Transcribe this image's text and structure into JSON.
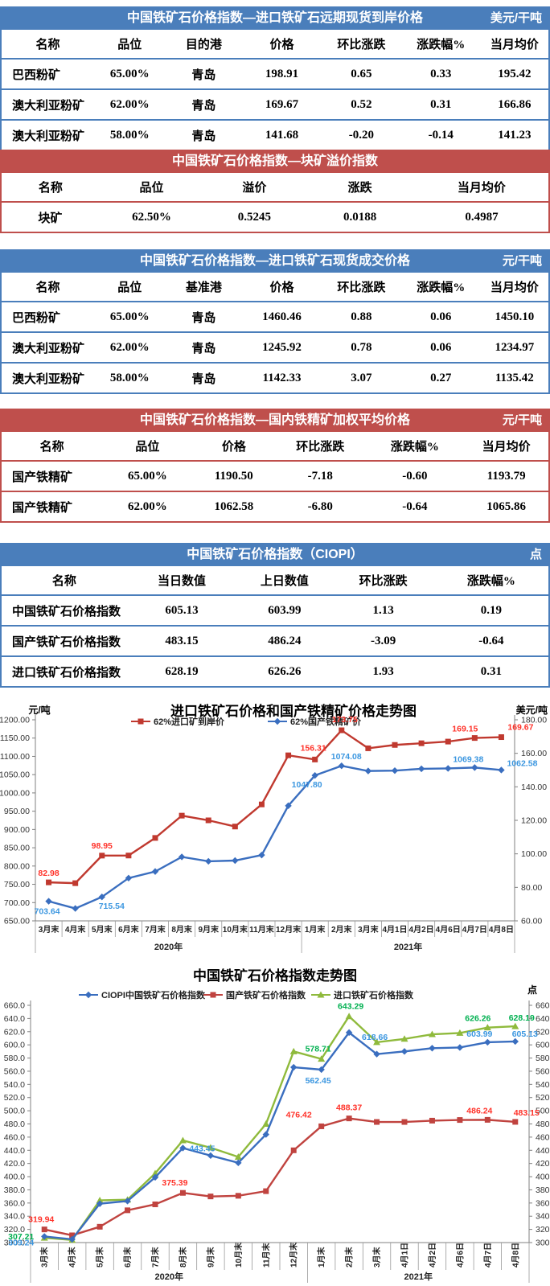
{
  "accent": {
    "blue": "#4A7EBB",
    "red": "#BF4F4C"
  },
  "tables": [
    {
      "theme": "blue",
      "title": "中国铁矿石价格指数—进口铁矿石远期现货到岸价格",
      "unit": "美元/干吨",
      "columns": [
        "名称",
        "品位",
        "目的港",
        "价格",
        "环比涨跌",
        "涨跌幅%",
        "当月均价"
      ],
      "rows": [
        [
          "巴西粉矿",
          "65.00%",
          "青岛",
          "198.91",
          "0.65",
          "0.33",
          "195.42"
        ],
        [
          "澳大利亚粉矿",
          "62.00%",
          "青岛",
          "169.67",
          "0.52",
          "0.31",
          "166.86"
        ],
        [
          "澳大利亚粉矿",
          "58.00%",
          "青岛",
          "141.68",
          "-0.20",
          "-0.14",
          "141.23"
        ]
      ]
    },
    {
      "theme": "red",
      "title": "中国铁矿石价格指数—块矿溢价指数",
      "unit": "",
      "columns": [
        "名称",
        "品位",
        "溢价",
        "涨跌",
        "当月均价"
      ],
      "rows": [
        [
          "块矿",
          "62.50%",
          "0.5245",
          "0.0188",
          "0.4987"
        ]
      ]
    },
    {
      "theme": "blue",
      "title": "中国铁矿石价格指数—进口铁矿石现货成交价格",
      "unit": "元/干吨",
      "columns": [
        "名称",
        "品位",
        "基准港",
        "价格",
        "环比涨跌",
        "涨跌幅%",
        "当月均价"
      ],
      "rows": [
        [
          "巴西粉矿",
          "65.00%",
          "青岛",
          "1460.46",
          "0.88",
          "0.06",
          "1450.10"
        ],
        [
          "澳大利亚粉矿",
          "62.00%",
          "青岛",
          "1245.92",
          "0.78",
          "0.06",
          "1234.97"
        ],
        [
          "澳大利亚粉矿",
          "58.00%",
          "青岛",
          "1142.33",
          "3.07",
          "0.27",
          "1135.42"
        ]
      ]
    },
    {
      "theme": "red",
      "title": "中国铁矿石价格指数—国内铁精矿加权平均价格",
      "unit": "元/干吨",
      "columns": [
        "名称",
        "品位",
        "价格",
        "环比涨跌",
        "涨跌幅%",
        "当月均价"
      ],
      "rows": [
        [
          "国产铁精矿",
          "65.00%",
          "1190.50",
          "-7.18",
          "-0.60",
          "1193.79"
        ],
        [
          "国产铁精矿",
          "62.00%",
          "1062.58",
          "-6.80",
          "-0.64",
          "1065.86"
        ]
      ]
    },
    {
      "theme": "blue",
      "title": "中国铁矿石价格指数（CIOPI）",
      "unit": "点",
      "columns": [
        "名称",
        "当日数值",
        "上日数值",
        "环比涨跌",
        "涨跌幅%"
      ],
      "rows": [
        [
          "中国铁矿石价格指数",
          "605.13",
          "603.99",
          "1.13",
          "0.19"
        ],
        [
          "国产铁矿石价格指数",
          "483.15",
          "486.24",
          "-3.09",
          "-0.64"
        ],
        [
          "进口铁矿石价格指数",
          "628.19",
          "626.26",
          "1.93",
          "0.31"
        ]
      ]
    }
  ],
  "chart_data": [
    {
      "type": "line",
      "title": "进口铁矿石价格和国产铁精矿价格走势图",
      "left_axis": {
        "label": "元/吨",
        "min": 650,
        "max": 1200,
        "step": 50,
        "dec": 2
      },
      "right_axis": {
        "label": "美元/吨",
        "min": 60,
        "max": 180,
        "step": 20,
        "dec": 2
      },
      "grid": false,
      "legend_position": "top",
      "categories": [
        "3月末",
        "4月末",
        "5月末",
        "6月末",
        "7月末",
        "8月末",
        "9月末",
        "10月末",
        "11月末",
        "12月末",
        "1月末",
        "2月末",
        "3月末",
        "4月1日",
        "4月2日",
        "4月6日",
        "4月7日",
        "4月8日"
      ],
      "year_groups": [
        {
          "label": "2020年",
          "span": 10
        },
        {
          "label": "2021年",
          "span": 8
        }
      ],
      "series": [
        {
          "name": "62%进口矿到岸价",
          "axis": "right",
          "color": "#C0392F",
          "label_color": "#FF3229",
          "marker": "square",
          "values": [
            82.98,
            82.5,
            98.95,
            99,
            109.5,
            122.8,
            120,
            116.3,
            129.5,
            158.8,
            156.31,
            173.75,
            163,
            165,
            166,
            167,
            169.15,
            169.67
          ],
          "point_labels": [
            {
              "i": 0,
              "t": "82.98",
              "dx": 0,
              "dy": -8
            },
            {
              "i": 2,
              "t": "98.95",
              "dx": 0,
              "dy": -9
            },
            {
              "i": 10,
              "t": "156.31",
              "dx": -2,
              "dy": -11
            },
            {
              "i": 11,
              "t": "173.75",
              "dx": 4,
              "dy": -10
            },
            {
              "i": 16,
              "t": "169.15",
              "dx": -12,
              "dy": -8
            },
            {
              "i": 17,
              "t": "169.67",
              "dx": 24,
              "dy": -9
            }
          ]
        },
        {
          "name": "62%国产铁精矿价",
          "axis": "left",
          "color": "#3A6EBF",
          "label_color": "#3C97E0",
          "marker": "diamond",
          "values": [
            703.64,
            684,
            715.54,
            767,
            785,
            825,
            813,
            815,
            830,
            965,
            1047.8,
            1074.08,
            1060,
            1061,
            1066,
            1067,
            1069.38,
            1062.58
          ],
          "point_labels": [
            {
              "i": 0,
              "t": "703.64",
              "dx": -2,
              "dy": 16
            },
            {
              "i": 2,
              "t": "715.54",
              "dx": 12,
              "dy": 15
            },
            {
              "i": 10,
              "t": "1047.80",
              "dx": -10,
              "dy": 15
            },
            {
              "i": 11,
              "t": "1074.08",
              "dx": 6,
              "dy": -8
            },
            {
              "i": 16,
              "t": "1069.38",
              "dx": -8,
              "dy": -7
            },
            {
              "i": 17,
              "t": "1062.58",
              "dx": 26,
              "dy": -5
            }
          ]
        }
      ]
    },
    {
      "type": "line",
      "title": "中国铁矿石价格指数走势图",
      "left_axis": {
        "label": "",
        "min": 300,
        "max": 660,
        "step": 20,
        "dec": 1
      },
      "right_axis": {
        "label": "点",
        "min": 300,
        "max": 660,
        "step": 20,
        "dec": 1
      },
      "grid": false,
      "legend_position": "top",
      "categories": [
        "3月末",
        "4月末",
        "5月末",
        "6月末",
        "7月末",
        "8月末",
        "9月末",
        "10月末",
        "11月末",
        "12月末",
        "1月末",
        "2月末",
        "3月末",
        "4月1日",
        "4月2日",
        "4月6日",
        "4月7日",
        "4月8日"
      ],
      "year_groups": [
        {
          "label": "2020年",
          "span": 10
        },
        {
          "label": "2021年",
          "span": 8
        }
      ],
      "series": [
        {
          "name": "进口铁矿石价格指数",
          "axis": "left",
          "color": "#8FBA3C",
          "label_color": "#00B050",
          "marker": "triangle",
          "values": [
            307.21,
            304,
            364,
            365,
            405,
            455,
            444,
            430,
            480,
            590,
            578.71,
            643.29,
            604,
            609,
            616,
            618,
            626.26,
            628.19
          ],
          "point_labels": [
            {
              "i": 0,
              "t": "307.21",
              "dx": -29,
              "dy": 2
            },
            {
              "i": 10,
              "t": "578.71",
              "dx": -4,
              "dy": -9
            },
            {
              "i": 11,
              "t": "643.29",
              "dx": 2,
              "dy": -9
            },
            {
              "i": 16,
              "t": "626.26",
              "dx": -12,
              "dy": -8
            },
            {
              "i": 17,
              "t": "628.19",
              "dx": 8,
              "dy": -7
            }
          ]
        },
        {
          "name": "国产铁矿石价格指数",
          "axis": "left",
          "color": "#C0433F",
          "label_color": "#FF3229",
          "marker": "square",
          "values": [
            319.94,
            311,
            324,
            349,
            358,
            375.39,
            370,
            371,
            378,
            440,
            476.42,
            488.37,
            483,
            483,
            485,
            486,
            486.24,
            483.15
          ],
          "point_labels": [
            {
              "i": 0,
              "t": "319.94",
              "dx": -4,
              "dy": -9
            },
            {
              "i": 5,
              "t": "375.39",
              "dx": -10,
              "dy": -9
            },
            {
              "i": 10,
              "t": "476.42",
              "dx": -28,
              "dy": -11
            },
            {
              "i": 11,
              "t": "488.37",
              "dx": 0,
              "dy": -10
            },
            {
              "i": 16,
              "t": "486.24",
              "dx": -10,
              "dy": -8
            },
            {
              "i": 17,
              "t": "483.15",
              "dx": 14,
              "dy": -8
            }
          ]
        },
        {
          "name": "CIOPI中国铁矿石价格指数",
          "axis": "left",
          "color": "#3A6EBF",
          "label_color": "#3C97E0",
          "marker": "diamond",
          "values": [
            309.24,
            305,
            359,
            363,
            399,
            443.45,
            432,
            421,
            464,
            566,
            562.45,
            618.66,
            586,
            590,
            595,
            596,
            603.99,
            605.13
          ],
          "point_labels": [
            {
              "i": 0,
              "t": "309.24",
              "dx": -29,
              "dy": 11
            },
            {
              "i": 5,
              "t": "443.45",
              "dx": 24,
              "dy": 4
            },
            {
              "i": 10,
              "t": "562.45",
              "dx": -4,
              "dy": 17
            },
            {
              "i": 11,
              "t": "618.66",
              "dx": 32,
              "dy": 9
            },
            {
              "i": 16,
              "t": "603.99",
              "dx": -10,
              "dy": -7
            },
            {
              "i": 17,
              "t": "605.13",
              "dx": 12,
              "dy": -6
            }
          ]
        }
      ]
    }
  ]
}
